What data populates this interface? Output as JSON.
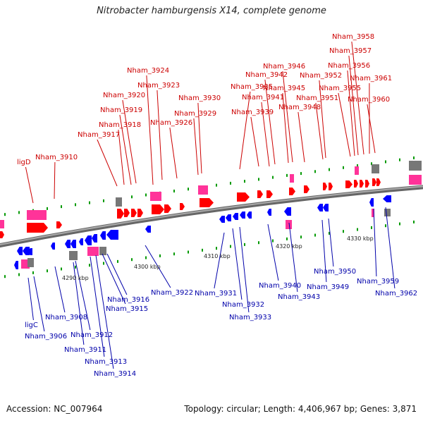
{
  "title": "Nitrobacter hamburgensis X14, complete genome",
  "footer": {
    "accession": "Accession: NC_007964",
    "summary": "Topology: circular; Length: 4,406,967 bp; Genes: 3,871"
  },
  "colors": {
    "forward_cds": "#ff0000",
    "reverse_cds": "#0000ff",
    "rna": "#ff3399",
    "pseudo": "#777777",
    "top_label": "#cc0000",
    "bottom_label": "#0000aa",
    "backbone": "#888888",
    "tick": "#009900"
  },
  "scale_labels": [
    "4290 kbp",
    "4300 kbp",
    "4310 kbp",
    "4320 kbp",
    "4330 kbp"
  ],
  "top_genes": [
    "ligD",
    "Nham_3910",
    "Nham_3917",
    "Nham_3918",
    "Nham_3919",
    "Nham_3920",
    "Nham_3923",
    "Nham_3924",
    "Nham_3926",
    "Nham_3929",
    "Nham_3930",
    "Nham_3935",
    "Nham_3939",
    "Nham_3941",
    "Nham_3942",
    "Nham_3945",
    "Nham_3946",
    "Nham_3948",
    "Nham_3951",
    "Nham_3952",
    "Nham_3955",
    "Nham_3956",
    "Nham_3957",
    "Nham_3958",
    "Nham_3960",
    "Nham_3961"
  ],
  "bottom_genes": [
    "ligC",
    "Nham_3906",
    "Nham_3908",
    "Nham_3911",
    "Nham_3912",
    "Nham_3913",
    "Nham_3914",
    "Nham_3915",
    "Nham_3916",
    "Nham_3922",
    "Nham_3931",
    "Nham_3932",
    "Nham_3933",
    "Nham_3940",
    "Nham_3943",
    "Nham_3949",
    "Nham_3950",
    "Nham_3959",
    "Nham_3962"
  ]
}
